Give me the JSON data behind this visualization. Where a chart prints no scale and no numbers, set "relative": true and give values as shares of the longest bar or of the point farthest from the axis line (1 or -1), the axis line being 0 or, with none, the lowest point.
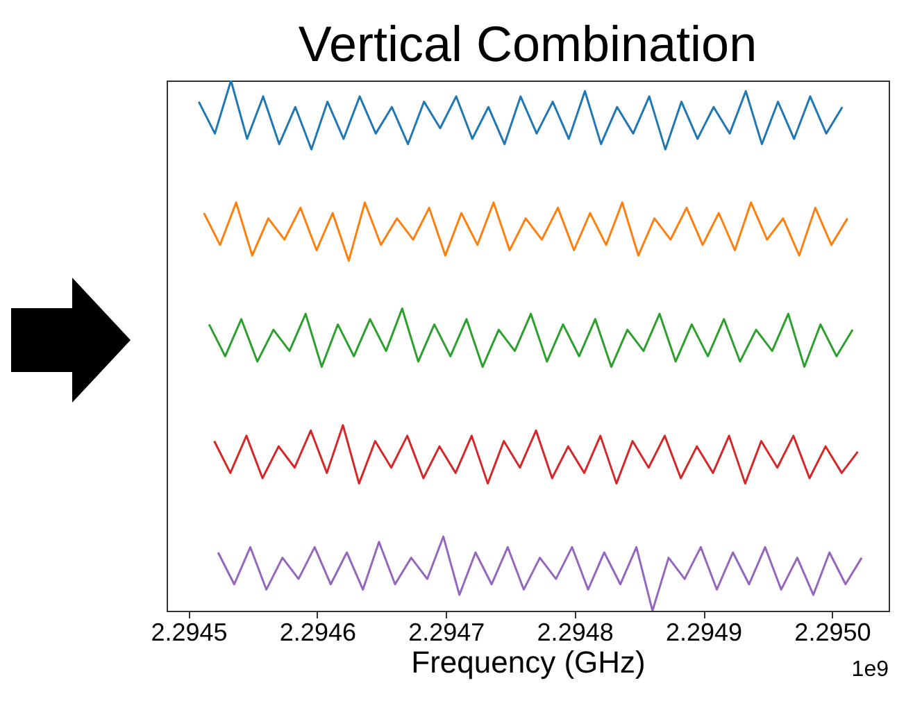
{
  "chart_data": {
    "type": "line",
    "title": "Vertical Combination",
    "xlabel": "Frequency (GHz)",
    "relative": true,
    "grid": false,
    "xlim": [
      2.294483,
      2.295044
    ],
    "xticks": [
      2.2945,
      2.2946,
      2.2947,
      2.2948,
      2.2949,
      {
        "value": 2.295,
        "label": "2.2950"
      }
    ],
    "annotations": [
      "1e9"
    ],
    "series": [
      {
        "color": "#1f77b4",
        "x": [
          2.294508,
          2.2945205,
          2.294533,
          2.2945455,
          2.294558,
          2.2945705,
          2.294583,
          2.2945955,
          2.294608,
          2.2946205,
          2.294633,
          2.2946455,
          2.294658,
          2.2946705,
          2.294683,
          2.2946955,
          2.294708,
          2.2947205,
          2.294733,
          2.2947455,
          2.294758,
          2.2947705,
          2.294783,
          2.2947955,
          2.294808,
          2.2948205,
          2.294833,
          2.2948455,
          2.294858,
          2.2948705,
          2.294883,
          2.2948955,
          2.294908,
          2.2949205,
          2.294933,
          2.2949455,
          2.294958,
          2.2949705,
          2.294983,
          2.2949955,
          2.295008
        ],
        "values": [
          0.96,
          0.9,
          1.0,
          0.89,
          0.97,
          0.88,
          0.95,
          0.87,
          0.96,
          0.89,
          0.97,
          0.9,
          0.95,
          0.88,
          0.96,
          0.91,
          0.97,
          0.89,
          0.95,
          0.88,
          0.97,
          0.9,
          0.96,
          0.89,
          0.98,
          0.88,
          0.95,
          0.9,
          0.97,
          0.87,
          0.96,
          0.89,
          0.95,
          0.9,
          0.98,
          0.88,
          0.96,
          0.89,
          0.97,
          0.9,
          0.95
        ]
      },
      {
        "color": "#ff7f0e",
        "x": [
          2.294512,
          2.2945245,
          2.294537,
          2.2945495,
          2.294562,
          2.2945745,
          2.294587,
          2.2945995,
          2.294612,
          2.2946245,
          2.294637,
          2.2946495,
          2.294662,
          2.2946745,
          2.294687,
          2.2946995,
          2.294712,
          2.2947245,
          2.294737,
          2.2947495,
          2.294762,
          2.2947745,
          2.294787,
          2.2947995,
          2.294812,
          2.2948245,
          2.294837,
          2.2948495,
          2.294862,
          2.2948745,
          2.294887,
          2.2948995,
          2.294912,
          2.2949245,
          2.294937,
          2.2949495,
          2.294962,
          2.2949745,
          2.294987,
          2.2949995,
          2.295012
        ],
        "values": [
          0.75,
          0.69,
          0.77,
          0.67,
          0.74,
          0.7,
          0.76,
          0.68,
          0.75,
          0.66,
          0.77,
          0.69,
          0.74,
          0.7,
          0.76,
          0.67,
          0.75,
          0.69,
          0.77,
          0.68,
          0.74,
          0.7,
          0.76,
          0.68,
          0.75,
          0.69,
          0.77,
          0.67,
          0.74,
          0.7,
          0.76,
          0.69,
          0.75,
          0.68,
          0.77,
          0.7,
          0.74,
          0.67,
          0.76,
          0.69,
          0.74
        ]
      },
      {
        "color": "#2ca02c",
        "x": [
          2.294516,
          2.2945285,
          2.294541,
          2.2945535,
          2.294566,
          2.2945785,
          2.294591,
          2.2946035,
          2.294616,
          2.2946285,
          2.294641,
          2.2946535,
          2.294666,
          2.2946785,
          2.294691,
          2.2947035,
          2.294716,
          2.2947285,
          2.294741,
          2.2947535,
          2.294766,
          2.2947785,
          2.294791,
          2.2948035,
          2.294816,
          2.2948285,
          2.294841,
          2.2948535,
          2.294866,
          2.2948785,
          2.294891,
          2.2949035,
          2.294916,
          2.2949285,
          2.294941,
          2.2949535,
          2.294966,
          2.2949785,
          2.294991,
          2.2950035,
          2.295016
        ],
        "values": [
          0.54,
          0.48,
          0.55,
          0.47,
          0.53,
          0.49,
          0.56,
          0.46,
          0.54,
          0.48,
          0.55,
          0.49,
          0.57,
          0.47,
          0.54,
          0.48,
          0.55,
          0.46,
          0.53,
          0.49,
          0.56,
          0.47,
          0.54,
          0.48,
          0.55,
          0.46,
          0.53,
          0.49,
          0.56,
          0.47,
          0.54,
          0.48,
          0.55,
          0.47,
          0.53,
          0.49,
          0.56,
          0.46,
          0.54,
          0.48,
          0.53
        ]
      },
      {
        "color": "#d62728",
        "x": [
          2.29452,
          2.2945325,
          2.294545,
          2.2945575,
          2.29457,
          2.2945825,
          2.294595,
          2.2946075,
          2.29462,
          2.2946325,
          2.294645,
          2.2946575,
          2.29467,
          2.2946825,
          2.294695,
          2.2947075,
          2.29472,
          2.2947325,
          2.294745,
          2.2947575,
          2.29477,
          2.2947825,
          2.294795,
          2.2948075,
          2.29482,
          2.2948325,
          2.294845,
          2.2948575,
          2.29487,
          2.2948825,
          2.294895,
          2.2949075,
          2.29492,
          2.2949325,
          2.294945,
          2.2949575,
          2.29497,
          2.2949825,
          2.294995,
          2.2950075,
          2.29502
        ],
        "values": [
          0.32,
          0.26,
          0.33,
          0.25,
          0.31,
          0.27,
          0.34,
          0.26,
          0.35,
          0.24,
          0.32,
          0.27,
          0.33,
          0.25,
          0.31,
          0.26,
          0.33,
          0.24,
          0.32,
          0.27,
          0.34,
          0.25,
          0.31,
          0.26,
          0.33,
          0.24,
          0.32,
          0.27,
          0.33,
          0.25,
          0.31,
          0.26,
          0.33,
          0.24,
          0.32,
          0.27,
          0.33,
          0.25,
          0.31,
          0.26,
          0.3
        ]
      },
      {
        "color": "#9467bd",
        "x": [
          2.294523,
          2.2945355,
          2.294548,
          2.2945605,
          2.294573,
          2.2945855,
          2.294598,
          2.2946105,
          2.294623,
          2.2946355,
          2.294648,
          2.2946605,
          2.294673,
          2.2946855,
          2.294698,
          2.2947105,
          2.294723,
          2.2947355,
          2.294748,
          2.2947605,
          2.294773,
          2.2947855,
          2.294798,
          2.2948105,
          2.294823,
          2.2948355,
          2.294848,
          2.2948605,
          2.294873,
          2.2948855,
          2.294898,
          2.2949105,
          2.294923,
          2.2949355,
          2.294948,
          2.2949605,
          2.294973,
          2.2949855,
          2.294998,
          2.2950105,
          2.295023
        ],
        "values": [
          0.11,
          0.05,
          0.12,
          0.04,
          0.1,
          0.06,
          0.12,
          0.05,
          0.11,
          0.04,
          0.13,
          0.05,
          0.1,
          0.06,
          0.14,
          0.03,
          0.11,
          0.05,
          0.12,
          0.04,
          0.1,
          0.06,
          0.12,
          0.04,
          0.11,
          0.05,
          0.12,
          0.0,
          0.1,
          0.06,
          0.12,
          0.04,
          0.11,
          0.05,
          0.12,
          0.04,
          0.1,
          0.03,
          0.11,
          0.05,
          0.1
        ]
      }
    ]
  }
}
